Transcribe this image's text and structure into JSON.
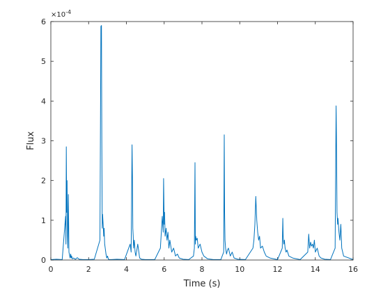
{
  "chart_data": {
    "type": "line",
    "xlabel": "Time (s)",
    "ylabel": "Flux",
    "xlim": [
      0,
      16
    ],
    "ylim": [
      0,
      6
    ],
    "y_multiplier": "×10",
    "y_exponent": "-4",
    "xticks": [
      0,
      2,
      4,
      6,
      8,
      10,
      12,
      14,
      16
    ],
    "yticks": [
      0,
      1,
      2,
      3,
      4,
      5,
      6
    ],
    "line_color": "#0072BD",
    "grid": false,
    "box": true,
    "series": [
      {
        "x": [
          0.0,
          0.3,
          0.6,
          0.78,
          0.8,
          0.82,
          0.84,
          0.86,
          0.88,
          0.9,
          0.93,
          0.96,
          1.0,
          1.02,
          1.05,
          1.08,
          1.1,
          1.14,
          1.2,
          1.3,
          1.4,
          1.5,
          1.7,
          2.0,
          2.3,
          2.6,
          2.65,
          2.68,
          2.7,
          2.72,
          2.74,
          2.77,
          2.8,
          2.82,
          2.85,
          2.88,
          2.92,
          2.96,
          3.0,
          3.05,
          3.1,
          3.2,
          3.5,
          3.9,
          4.2,
          4.25,
          4.3,
          4.32,
          4.34,
          4.36,
          4.38,
          4.42,
          4.46,
          4.5,
          4.6,
          4.7,
          4.8,
          5.0,
          5.5,
          5.8,
          5.9,
          5.95,
          5.97,
          6.0,
          6.02,
          6.05,
          6.1,
          6.15,
          6.2,
          6.25,
          6.3,
          6.4,
          6.5,
          6.6,
          6.7,
          6.8,
          7.0,
          7.3,
          7.55,
          7.6,
          7.63,
          7.65,
          7.67,
          7.7,
          7.75,
          7.8,
          7.9,
          8.0,
          8.1,
          8.3,
          8.6,
          9.0,
          9.15,
          9.18,
          9.2,
          9.22,
          9.25,
          9.3,
          9.35,
          9.4,
          9.5,
          9.6,
          9.7,
          9.9,
          10.3,
          10.7,
          10.75,
          10.8,
          10.85,
          10.9,
          10.95,
          11.0,
          11.05,
          11.1,
          11.2,
          11.3,
          11.4,
          11.6,
          12.0,
          12.25,
          12.28,
          12.3,
          12.33,
          12.36,
          12.4,
          12.45,
          12.5,
          12.6,
          12.8,
          13.2,
          13.6,
          13.65,
          13.7,
          13.75,
          13.8,
          13.85,
          13.9,
          13.95,
          14.0,
          14.1,
          14.2,
          14.3,
          14.5,
          14.8,
          15.05,
          15.1,
          15.12,
          15.15,
          15.18,
          15.2,
          15.25,
          15.3,
          15.35,
          15.4,
          15.5,
          16.0
        ],
        "y": [
          0.01,
          0.02,
          0.01,
          1.1,
          0.4,
          2.85,
          1.2,
          2.0,
          0.6,
          0.3,
          1.65,
          0.2,
          0.1,
          0.05,
          0.15,
          0.05,
          0.1,
          0.03,
          0.05,
          0.02,
          0.06,
          0.02,
          0.01,
          0.01,
          0.02,
          0.5,
          5.88,
          5.9,
          3.0,
          0.8,
          1.15,
          0.9,
          0.6,
          0.8,
          0.4,
          0.3,
          0.15,
          0.05,
          0.1,
          0.02,
          0.01,
          0.01,
          0.02,
          0.01,
          0.4,
          0.2,
          2.9,
          2.1,
          0.8,
          0.6,
          0.3,
          0.5,
          0.2,
          0.1,
          0.4,
          0.05,
          0.02,
          0.01,
          0.01,
          0.3,
          1.1,
          0.7,
          2.05,
          0.9,
          1.2,
          0.6,
          0.8,
          0.5,
          0.7,
          0.3,
          0.5,
          0.2,
          0.3,
          0.1,
          0.15,
          0.05,
          0.02,
          0.01,
          0.1,
          0.3,
          2.45,
          0.4,
          0.6,
          0.5,
          0.55,
          0.3,
          0.4,
          0.2,
          0.1,
          0.03,
          0.01,
          0.01,
          0.2,
          3.15,
          1.2,
          0.5,
          0.3,
          0.15,
          0.25,
          0.3,
          0.1,
          0.2,
          0.05,
          0.02,
          0.01,
          0.3,
          0.5,
          0.9,
          1.6,
          1.0,
          0.7,
          0.5,
          0.6,
          0.3,
          0.35,
          0.2,
          0.1,
          0.05,
          0.01,
          0.3,
          1.05,
          0.6,
          0.4,
          0.5,
          0.3,
          0.2,
          0.25,
          0.1,
          0.05,
          0.01,
          0.2,
          0.65,
          0.3,
          0.45,
          0.35,
          0.4,
          0.3,
          0.5,
          0.2,
          0.3,
          0.1,
          0.05,
          0.02,
          0.01,
          0.3,
          3.88,
          3.1,
          1.2,
          0.9,
          1.05,
          0.7,
          0.5,
          0.9,
          0.3,
          0.1,
          0.01
        ]
      }
    ]
  }
}
